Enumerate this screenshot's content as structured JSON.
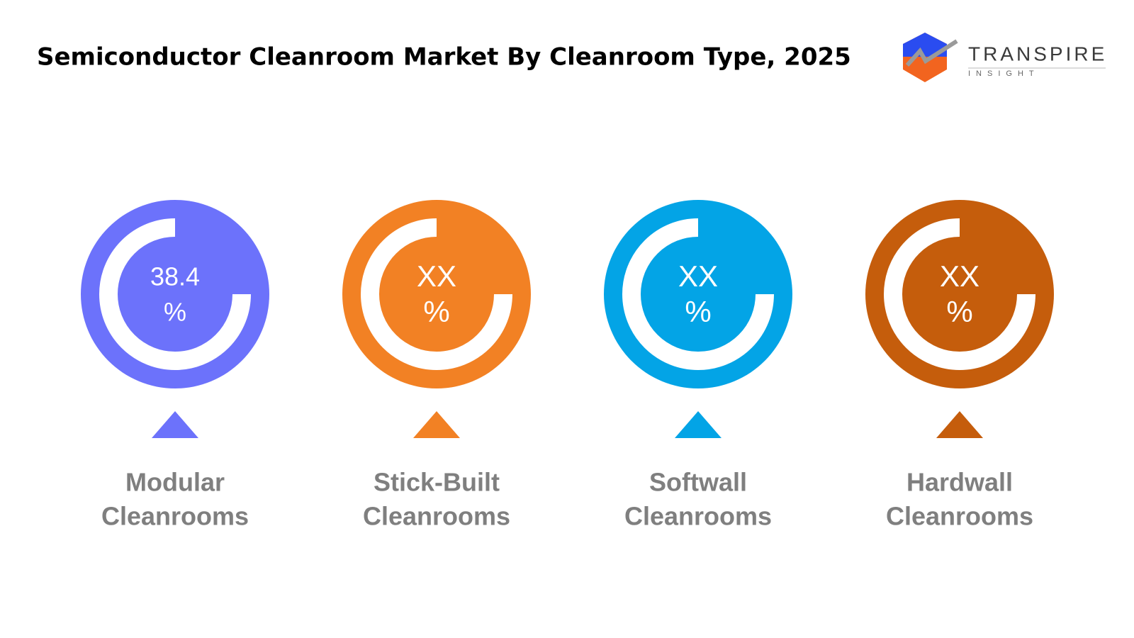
{
  "header": {
    "title": "Semiconductor Cleanroom Market By Cleanroom Type, 2025",
    "logo": {
      "name": "TRANSPIRE",
      "tagline": "INSIGHT"
    }
  },
  "items": [
    {
      "value": 38.4,
      "unit": "%",
      "label": [
        "Modular",
        "Cleanrooms"
      ],
      "color": "#6c72fb"
    },
    {
      "value": "XX",
      "unit": "%",
      "label": [
        "Stick-Built",
        "Cleanrooms"
      ],
      "color": "#f28124"
    },
    {
      "value": "XX",
      "unit": "%",
      "label": [
        "Softwall",
        "Cleanrooms"
      ],
      "color": "#03a4e6"
    },
    {
      "value": "XX",
      "unit": "%",
      "label": [
        "Hardwall",
        "Cleanrooms"
      ],
      "color": "#c55d0c"
    }
  ]
}
